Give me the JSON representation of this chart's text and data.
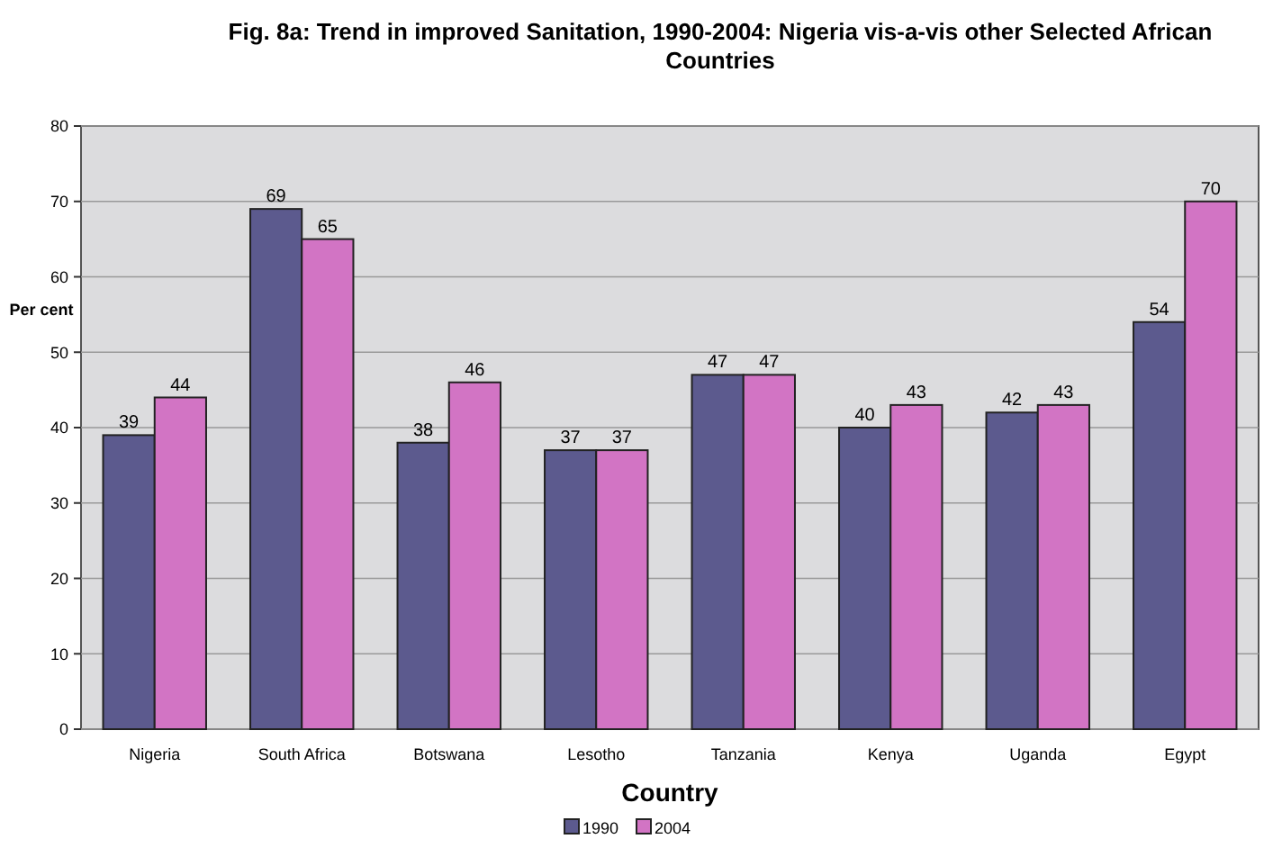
{
  "chart_data": {
    "type": "bar",
    "title": "Fig. 8a: Trend in improved Sanitation, 1990-2004: Nigeria vis-a-vis other Selected African Countries",
    "xlabel": "Country",
    "ylabel": "Per cent",
    "categories": [
      "Nigeria",
      "South Africa",
      "Botswana",
      "Lesotho",
      "Tanzania",
      "Kenya",
      "Uganda",
      "Egypt"
    ],
    "series": [
      {
        "name": "1990",
        "color": "#5c5a8e",
        "values": [
          39,
          69,
          38,
          37,
          47,
          40,
          42,
          54
        ]
      },
      {
        "name": "2004",
        "color": "#d274c4",
        "values": [
          44,
          65,
          46,
          37,
          47,
          43,
          43,
          70
        ]
      }
    ],
    "ylim": [
      0,
      80
    ],
    "yticks": [
      0,
      10,
      20,
      30,
      40,
      50,
      60,
      70,
      80
    ],
    "grid": "y",
    "data_labels": true,
    "legend": "bottom"
  }
}
